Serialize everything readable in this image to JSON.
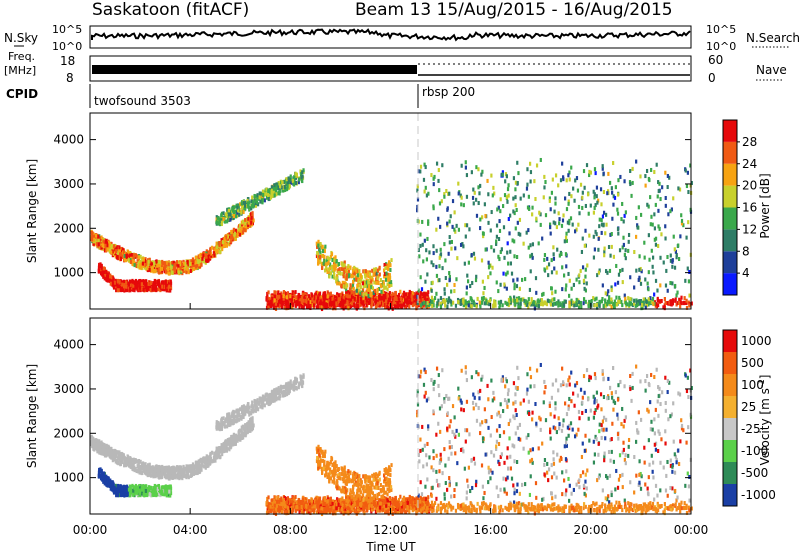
{
  "header": {
    "title": "Saskatoon (fitACF)",
    "beam_date": "Beam 13 15/Aug/2015 - 16/Aug/2015"
  },
  "chart_data": [
    {
      "type": "line",
      "name": "nsky-nsearch-panel",
      "left_axis": {
        "label": "N.Sky",
        "ticks": [
          "10^5",
          "10^0"
        ]
      },
      "right_axis": {
        "label": "N.Search",
        "ticks": [
          "10^5",
          "10^0"
        ]
      }
    },
    {
      "type": "line",
      "name": "freq-nave-panel",
      "left_axis": {
        "label": "Freq.",
        "unit": "[MHz]",
        "ticks": [
          "18",
          "8"
        ]
      },
      "right_axis": {
        "label": "Nave",
        "ticks": [
          "60",
          "0"
        ]
      }
    },
    {
      "type": "table",
      "name": "cpid-panel",
      "label": "CPID",
      "segments": [
        {
          "label": "twofsound 3503",
          "start_hour": 0,
          "end_hour": 13
        },
        {
          "label": "rbsp 200",
          "start_hour": 13,
          "end_hour": 24
        }
      ]
    },
    {
      "type": "heatmap",
      "name": "power-panel",
      "ylabel": "Slant Range [km]",
      "ylim": [
        180,
        4600
      ],
      "yticks": [
        "1000",
        "2000",
        "3000",
        "4000"
      ],
      "yticks_values": [
        1000,
        2000,
        3000,
        4000
      ],
      "colorbar": {
        "label": "Power [dB]",
        "ticks": [
          "4",
          "8",
          "12",
          "16",
          "20",
          "24",
          "28"
        ],
        "colors": [
          "#0a1aff",
          "#1e3f9a",
          "#2e7d66",
          "#3aa84b",
          "#c8d02c",
          "#f7a312",
          "#f05a14",
          "#e6080a"
        ]
      }
    },
    {
      "type": "heatmap",
      "name": "velocity-panel",
      "ylabel": "Slant Range [km]",
      "ylim": [
        180,
        4600
      ],
      "yticks": [
        "1000",
        "2000",
        "3000",
        "4000"
      ],
      "yticks_values": [
        1000,
        2000,
        3000,
        4000
      ],
      "xlabel": "Time UT",
      "xticks": [
        "00:00",
        "04:00",
        "08:00",
        "12:00",
        "16:00",
        "20:00",
        "00:00"
      ],
      "xticks_hours": [
        0,
        4,
        8,
        12,
        16,
        20,
        24
      ],
      "colorbar": {
        "label": "Velocity [m s-1]",
        "ticks": [
          "1000",
          "500",
          "100",
          "25",
          "-25",
          "-100",
          "-500",
          "-1000"
        ],
        "colors": [
          "#1a3fa5",
          "#2e8b57",
          "#5bd04a",
          "#c8c8c8",
          "#f4b030",
          "#f48a1a",
          "#f25c10",
          "#e60a0a"
        ]
      }
    }
  ],
  "colors": {
    "ground_scatter": "#b8b8b8",
    "power_low": "#1e3f9a",
    "power_high": "#e6080a",
    "velocity_neg": "#f48a1a",
    "velocity_pos": "#1a3fa5"
  }
}
